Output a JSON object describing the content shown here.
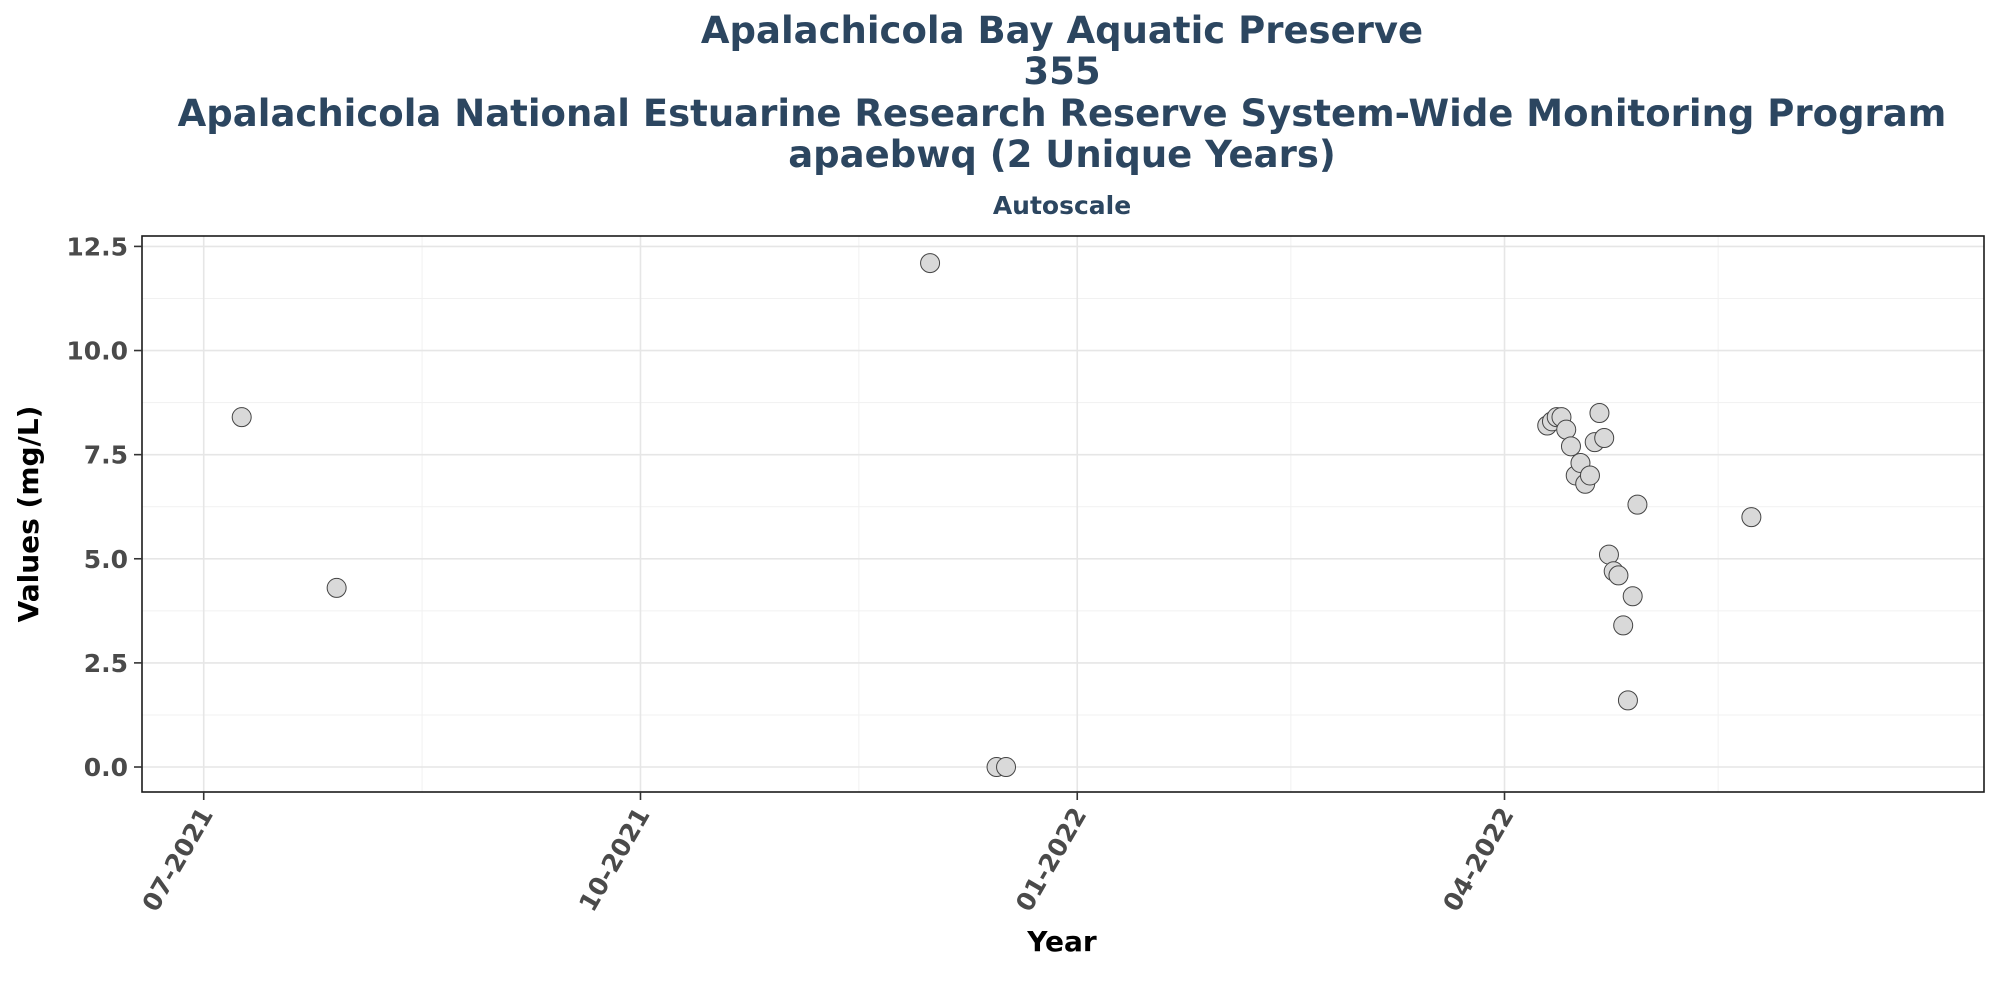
{
  "chart_data": {
    "type": "scatter",
    "title_lines": [
      "Apalachicola Bay Aquatic Preserve",
      "355",
      "Apalachicola National Estuarine Research Reserve System-Wide Monitoring Program",
      "apaebwq (2 Unique Years)"
    ],
    "subtitle": "Autoscale",
    "xlabel": "Year",
    "ylabel": "Values (mg/L)",
    "xlim": [
      "2021-06-18",
      "2022-07-11"
    ],
    "ylim": [
      -0.6,
      12.75
    ],
    "x_ticks": [
      {
        "date": "2021-07-01",
        "label": "07-2021"
      },
      {
        "date": "2021-10-01",
        "label": "10-2021"
      },
      {
        "date": "2022-01-01",
        "label": "01-2022"
      },
      {
        "date": "2022-04-01",
        "label": "04-2022"
      }
    ],
    "x_minor_ticks": [
      "2021-08-16",
      "2021-11-16",
      "2022-02-15",
      "2022-05-16"
    ],
    "y_ticks": [
      {
        "value": 0.0,
        "label": "0.0"
      },
      {
        "value": 2.5,
        "label": "2.5"
      },
      {
        "value": 5.0,
        "label": "5.0"
      },
      {
        "value": 7.5,
        "label": "7.5"
      },
      {
        "value": 10.0,
        "label": "10.0"
      },
      {
        "value": 12.5,
        "label": "12.5"
      }
    ],
    "y_minor_ticks": [
      1.25,
      3.75,
      6.25,
      8.75,
      11.25
    ],
    "grid": true,
    "legend": "none",
    "colors": {
      "point_fill": "#d9d9d9",
      "point_stroke": "#444444",
      "title": "#2c4660"
    },
    "points": [
      {
        "x": "2021-07-09",
        "y": 8.4
      },
      {
        "x": "2021-07-29",
        "y": 4.3
      },
      {
        "x": "2021-12-01",
        "y": 12.1
      },
      {
        "x": "2021-12-15",
        "y": 0.0
      },
      {
        "x": "2021-12-17",
        "y": 0.0
      },
      {
        "x": "2022-04-10",
        "y": 8.2
      },
      {
        "x": "2022-04-11",
        "y": 8.3
      },
      {
        "x": "2022-04-12",
        "y": 8.4
      },
      {
        "x": "2022-04-13",
        "y": 8.4
      },
      {
        "x": "2022-04-14",
        "y": 8.1
      },
      {
        "x": "2022-04-15",
        "y": 7.7
      },
      {
        "x": "2022-04-16",
        "y": 7.0
      },
      {
        "x": "2022-04-17",
        "y": 7.3
      },
      {
        "x": "2022-04-18",
        "y": 6.8
      },
      {
        "x": "2022-04-19",
        "y": 7.0
      },
      {
        "x": "2022-04-20",
        "y": 7.8
      },
      {
        "x": "2022-04-21",
        "y": 8.5
      },
      {
        "x": "2022-04-22",
        "y": 7.9
      },
      {
        "x": "2022-04-23",
        "y": 5.1
      },
      {
        "x": "2022-04-24",
        "y": 4.7
      },
      {
        "x": "2022-04-25",
        "y": 4.6
      },
      {
        "x": "2022-04-26",
        "y": 3.4
      },
      {
        "x": "2022-04-27",
        "y": 1.6
      },
      {
        "x": "2022-04-28",
        "y": 4.1
      },
      {
        "x": "2022-04-29",
        "y": 6.3
      },
      {
        "x": "2022-05-23",
        "y": 6.0
      }
    ]
  }
}
